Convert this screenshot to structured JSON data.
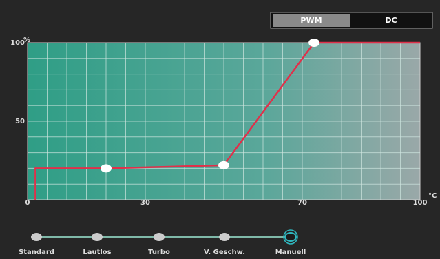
{
  "chart_data": {
    "type": "line",
    "y_label": "%",
    "x_label": "°C",
    "x": [
      2,
      2,
      20,
      50,
      73,
      100
    ],
    "values": [
      0,
      20,
      20,
      22,
      100,
      100
    ],
    "markers": [
      false,
      false,
      true,
      true,
      true,
      false
    ],
    "color": "#e0304a",
    "xlim": [
      0,
      100
    ],
    "ylim": [
      0,
      100
    ],
    "xticks": [
      0,
      30,
      70,
      100
    ],
    "yticks": [
      50,
      100
    ],
    "xgrid": [
      5,
      10,
      15,
      20,
      25,
      30,
      35,
      40,
      45,
      50,
      55,
      60,
      65,
      70,
      75,
      80,
      85,
      90,
      95
    ],
    "ygrid": [
      10,
      20,
      30,
      40,
      50,
      60,
      70,
      80,
      90
    ],
    "grid": true
  },
  "toggle": {
    "options": [
      "PWM",
      "DC"
    ],
    "selected": 0
  },
  "modes": {
    "items": [
      "Standard",
      "Lautlos",
      "Turbo",
      "V. Geschw.",
      "Manuell"
    ],
    "selected": 4
  }
}
